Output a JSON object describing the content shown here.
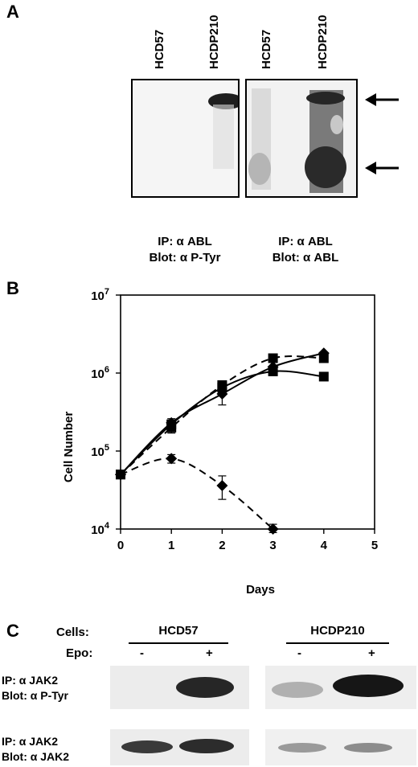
{
  "panel_a": {
    "letter": "A",
    "lanes": [
      "HCD57",
      "HCDP210",
      "HCD57",
      "HCDP210"
    ],
    "caption_left": [
      "IP: α ABL",
      "Blot: α P-Tyr"
    ],
    "caption_right": [
      "IP: α ABL",
      "Blot: α ABL"
    ]
  },
  "panel_b": {
    "letter": "B"
  },
  "chart_data": {
    "type": "line",
    "xlabel": "Days",
    "ylabel": "Cell Number",
    "xlim": [
      0,
      5
    ],
    "ylim": [
      10000,
      10000000
    ],
    "yscale": "log",
    "x_ticks": [
      "0",
      "1",
      "2",
      "3",
      "4",
      "5"
    ],
    "y_ticks": [
      {
        "base": "10",
        "exp": "4"
      },
      {
        "base": "10",
        "exp": "5"
      },
      {
        "base": "10",
        "exp": "6"
      },
      {
        "base": "10",
        "exp": "7"
      }
    ],
    "series": [
      {
        "marker": "square",
        "dash": false,
        "x": [
          0,
          1,
          2,
          3,
          4
        ],
        "y": [
          50000,
          220000,
          650000,
          1050000,
          900000
        ]
      },
      {
        "marker": "diamond",
        "dash": false,
        "x": [
          0,
          1,
          2,
          3,
          4
        ],
        "y": [
          50000,
          230000,
          540000,
          1200000,
          1800000
        ],
        "err": [
          0,
          30000,
          150000,
          0,
          0
        ]
      },
      {
        "marker": "square",
        "dash": true,
        "x": [
          0,
          1,
          2,
          3,
          4
        ],
        "y": [
          50000,
          200000,
          700000,
          1550000,
          1550000
        ],
        "err": [
          0,
          30000,
          0,
          0,
          0
        ]
      },
      {
        "marker": "diamond",
        "dash": true,
        "x": [
          0,
          1,
          2,
          3
        ],
        "y": [
          50000,
          80000,
          36000,
          10000
        ],
        "err": [
          0,
          10000,
          12000,
          1500
        ]
      }
    ]
  },
  "panel_c": {
    "letter": "C",
    "cells_label": "Cells:",
    "epo_label": "Epo:",
    "group_left": "HCD57",
    "group_right": "HCDP210",
    "minus": "-",
    "plus": "+",
    "row1": [
      "IP: α JAK2",
      "Blot: α P-Tyr"
    ],
    "row2": [
      "IP: α JAK2",
      "Blot: α JAK2"
    ]
  }
}
